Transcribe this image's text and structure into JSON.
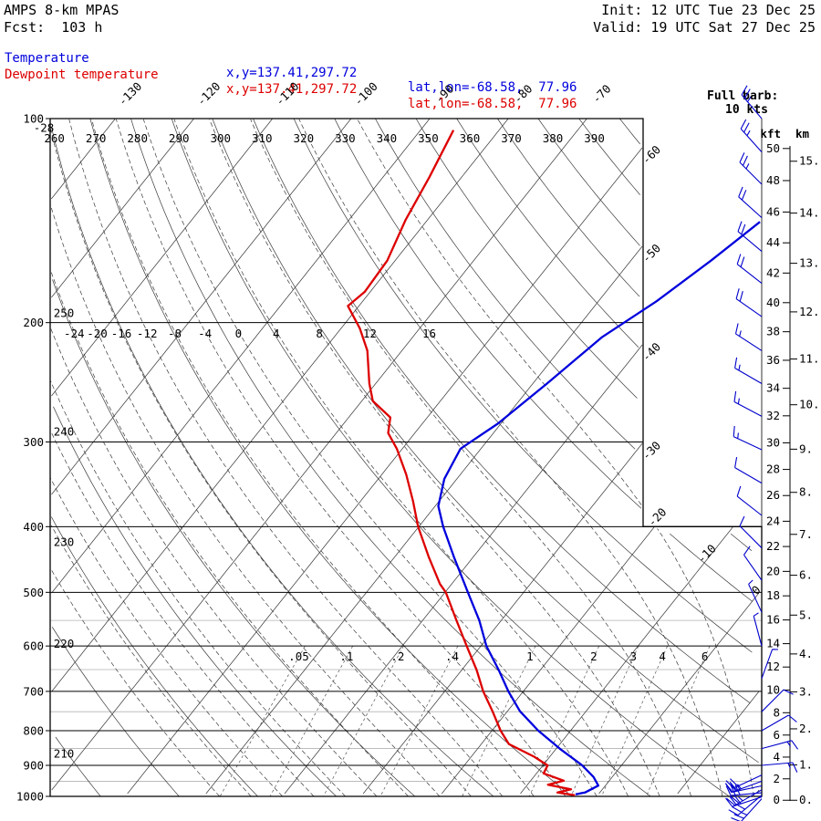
{
  "header": {
    "model": "AMPS 8-km MPAS",
    "fcst": "Fcst:  103 h",
    "init": "Init: 12 UTC Tue 23 Dec 25",
    "valid": "Valid: 19 UTC Sat 27 Dec 25"
  },
  "legend": {
    "temperature": {
      "label": "Temperature",
      "xy": "x,y=137.41,297.72",
      "latlon": "lat,lon=-68.58,  77.96",
      "color": "#0000dd"
    },
    "dewpoint": {
      "label": "Dewpoint temperature",
      "xy": "x,y=137.41,297.72",
      "latlon": "lat,lon=-68.58,  77.96",
      "color": "#dd0000"
    }
  },
  "barb_note": {
    "line1": "Full barb:",
    "line2": "10 kts"
  },
  "chart_data": {
    "type": "line",
    "diagram": "skew-t-log-p",
    "pressure_axis": {
      "unit": "hPa",
      "ticks": [
        100,
        200,
        300,
        400,
        500,
        600,
        700,
        800,
        900,
        1000
      ],
      "minor": [
        550,
        650,
        750,
        850,
        950
      ]
    },
    "isotherms": {
      "unit": "C",
      "min": -150,
      "max": 30,
      "step": 10,
      "top_labels": [
        -130,
        -120,
        -110,
        -100,
        -90,
        -80,
        -70
      ],
      "right_labels": [
        -60,
        -50,
        -40,
        -30,
        -20,
        -10,
        0
      ]
    },
    "dry_adiabats": {
      "unit": "K",
      "min": 200,
      "max": 400,
      "step": 10,
      "top_labels": [
        260,
        270,
        280,
        290,
        300,
        310,
        320,
        330,
        340,
        350,
        360,
        370,
        380,
        390
      ],
      "left_labels": [
        250,
        240,
        230,
        220,
        210
      ]
    },
    "moist_adiabats": {
      "unit": "C",
      "min": -48,
      "max": 20,
      "step": 4,
      "labels": [
        -28,
        -24,
        -20,
        -16,
        -12,
        -8,
        -4,
        0,
        4,
        8,
        12,
        16
      ]
    },
    "mixing_ratio": {
      "unit": "g/kg",
      "values": [
        0.05,
        0.1,
        0.2,
        0.4,
        1,
        2,
        3,
        4,
        6
      ],
      "labels": [
        ".05",
        ".1",
        ".2",
        ".4",
        "1",
        "2",
        "3",
        "4",
        "6"
      ]
    },
    "height_axes": {
      "kft": {
        "label": "kft",
        "min": 0,
        "max": 50,
        "step": 2
      },
      "km": {
        "label": "km",
        "min": 0,
        "max": 15,
        "step": 1
      }
    },
    "series": [
      {
        "name": "Temperature",
        "color": "#0000dd",
        "points": [
          [
            142,
            -37.5
          ],
          [
            162,
            -39.8
          ],
          [
            186,
            -42.6
          ],
          [
            210,
            -45.9
          ],
          [
            246,
            -48.2
          ],
          [
            282,
            -50.4
          ],
          [
            307,
            -52.6
          ],
          [
            340,
            -51.6
          ],
          [
            373,
            -49.6
          ],
          [
            400,
            -46.9
          ],
          [
            443,
            -42.5
          ],
          [
            500,
            -37.1
          ],
          [
            550,
            -32.8
          ],
          [
            600,
            -29.3
          ],
          [
            651,
            -25.3
          ],
          [
            700,
            -21.9
          ],
          [
            749,
            -18.4
          ],
          [
            800,
            -14.1
          ],
          [
            851,
            -9.5
          ],
          [
            900,
            -5.0
          ],
          [
            936,
            -2.4
          ],
          [
            964,
            -0.9
          ],
          [
            987,
            -1.9
          ],
          [
            993,
            -2.9
          ]
        ]
      },
      {
        "name": "Dewpoint temperature",
        "color": "#dd0000",
        "points": [
          [
            104,
            -85.8
          ],
          [
            122,
            -84.1
          ],
          [
            141,
            -82.8
          ],
          [
            162,
            -81.0
          ],
          [
            180,
            -80.7
          ],
          [
            189,
            -81.4
          ],
          [
            204,
            -77.6
          ],
          [
            220,
            -74.4
          ],
          [
            246,
            -70.8
          ],
          [
            261,
            -68.6
          ],
          [
            276,
            -64.7
          ],
          [
            291,
            -63.4
          ],
          [
            307,
            -60.7
          ],
          [
            335,
            -56.9
          ],
          [
            367,
            -53.3
          ],
          [
            400,
            -50.1
          ],
          [
            443,
            -45.7
          ],
          [
            486,
            -41.5
          ],
          [
            500,
            -39.9
          ],
          [
            550,
            -35.7
          ],
          [
            600,
            -31.8
          ],
          [
            651,
            -28.1
          ],
          [
            700,
            -25.1
          ],
          [
            749,
            -21.9
          ],
          [
            800,
            -18.9
          ],
          [
            837,
            -16.5
          ],
          [
            874,
            -12.0
          ],
          [
            900,
            -9.4
          ],
          [
            925,
            -9.1
          ],
          [
            948,
            -5.8
          ],
          [
            961,
            -7.4
          ],
          [
            976,
            -4.0
          ],
          [
            987,
            -5.4
          ],
          [
            996,
            -2.9
          ]
        ]
      }
    ],
    "wind_barbs": {
      "color": "#0000cc",
      "full_barb_kt": 10,
      "levels": [
        {
          "p": 100,
          "dir": 320,
          "spd": 25
        },
        {
          "p": 112,
          "dir": 318,
          "spd": 25
        },
        {
          "p": 125,
          "dir": 315,
          "spd": 25
        },
        {
          "p": 140,
          "dir": 312,
          "spd": 20
        },
        {
          "p": 157,
          "dir": 310,
          "spd": 20
        },
        {
          "p": 175,
          "dir": 308,
          "spd": 20
        },
        {
          "p": 196,
          "dir": 305,
          "spd": 20
        },
        {
          "p": 220,
          "dir": 303,
          "spd": 15
        },
        {
          "p": 246,
          "dir": 300,
          "spd": 15
        },
        {
          "p": 275,
          "dir": 298,
          "spd": 15
        },
        {
          "p": 308,
          "dir": 295,
          "spd": 15
        },
        {
          "p": 345,
          "dir": 300,
          "spd": 10
        },
        {
          "p": 385,
          "dir": 308,
          "spd": 10
        },
        {
          "p": 430,
          "dir": 315,
          "spd": 10
        },
        {
          "p": 480,
          "dir": 325,
          "spd": 10
        },
        {
          "p": 535,
          "dir": 335,
          "spd": 5
        },
        {
          "p": 600,
          "dir": 345,
          "spd": 5
        },
        {
          "p": 670,
          "dir": 20,
          "spd": 5
        },
        {
          "p": 750,
          "dir": 45,
          "spd": 10
        },
        {
          "p": 800,
          "dir": 60,
          "spd": 10
        },
        {
          "p": 850,
          "dir": 75,
          "spd": 15
        },
        {
          "p": 900,
          "dir": 85,
          "spd": 15
        },
        {
          "p": 930,
          "dir": 245,
          "spd": 20
        },
        {
          "p": 950,
          "dir": 250,
          "spd": 25
        },
        {
          "p": 965,
          "dir": 258,
          "spd": 25
        },
        {
          "p": 978,
          "dir": 240,
          "spd": 25
        },
        {
          "p": 988,
          "dir": 265,
          "spd": 30
        },
        {
          "p": 996,
          "dir": 230,
          "spd": 30
        },
        {
          "p": 1002,
          "dir": 252,
          "spd": 30
        },
        {
          "p": 1008,
          "dir": 222,
          "spd": 25
        }
      ]
    }
  }
}
